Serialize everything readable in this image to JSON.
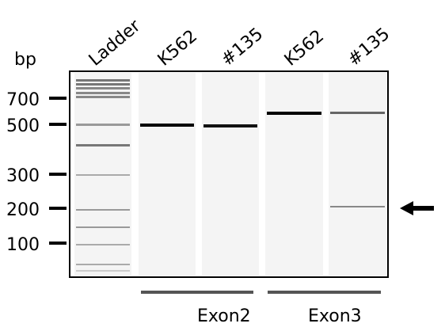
{
  "unit_label": "bp",
  "lanes": [
    "Ladder",
    "K562",
    "#135",
    "K562",
    "#135"
  ],
  "markers": [
    "700",
    "500",
    "300",
    "200",
    "100"
  ],
  "groups": [
    "Exon2",
    "Exon3"
  ]
}
